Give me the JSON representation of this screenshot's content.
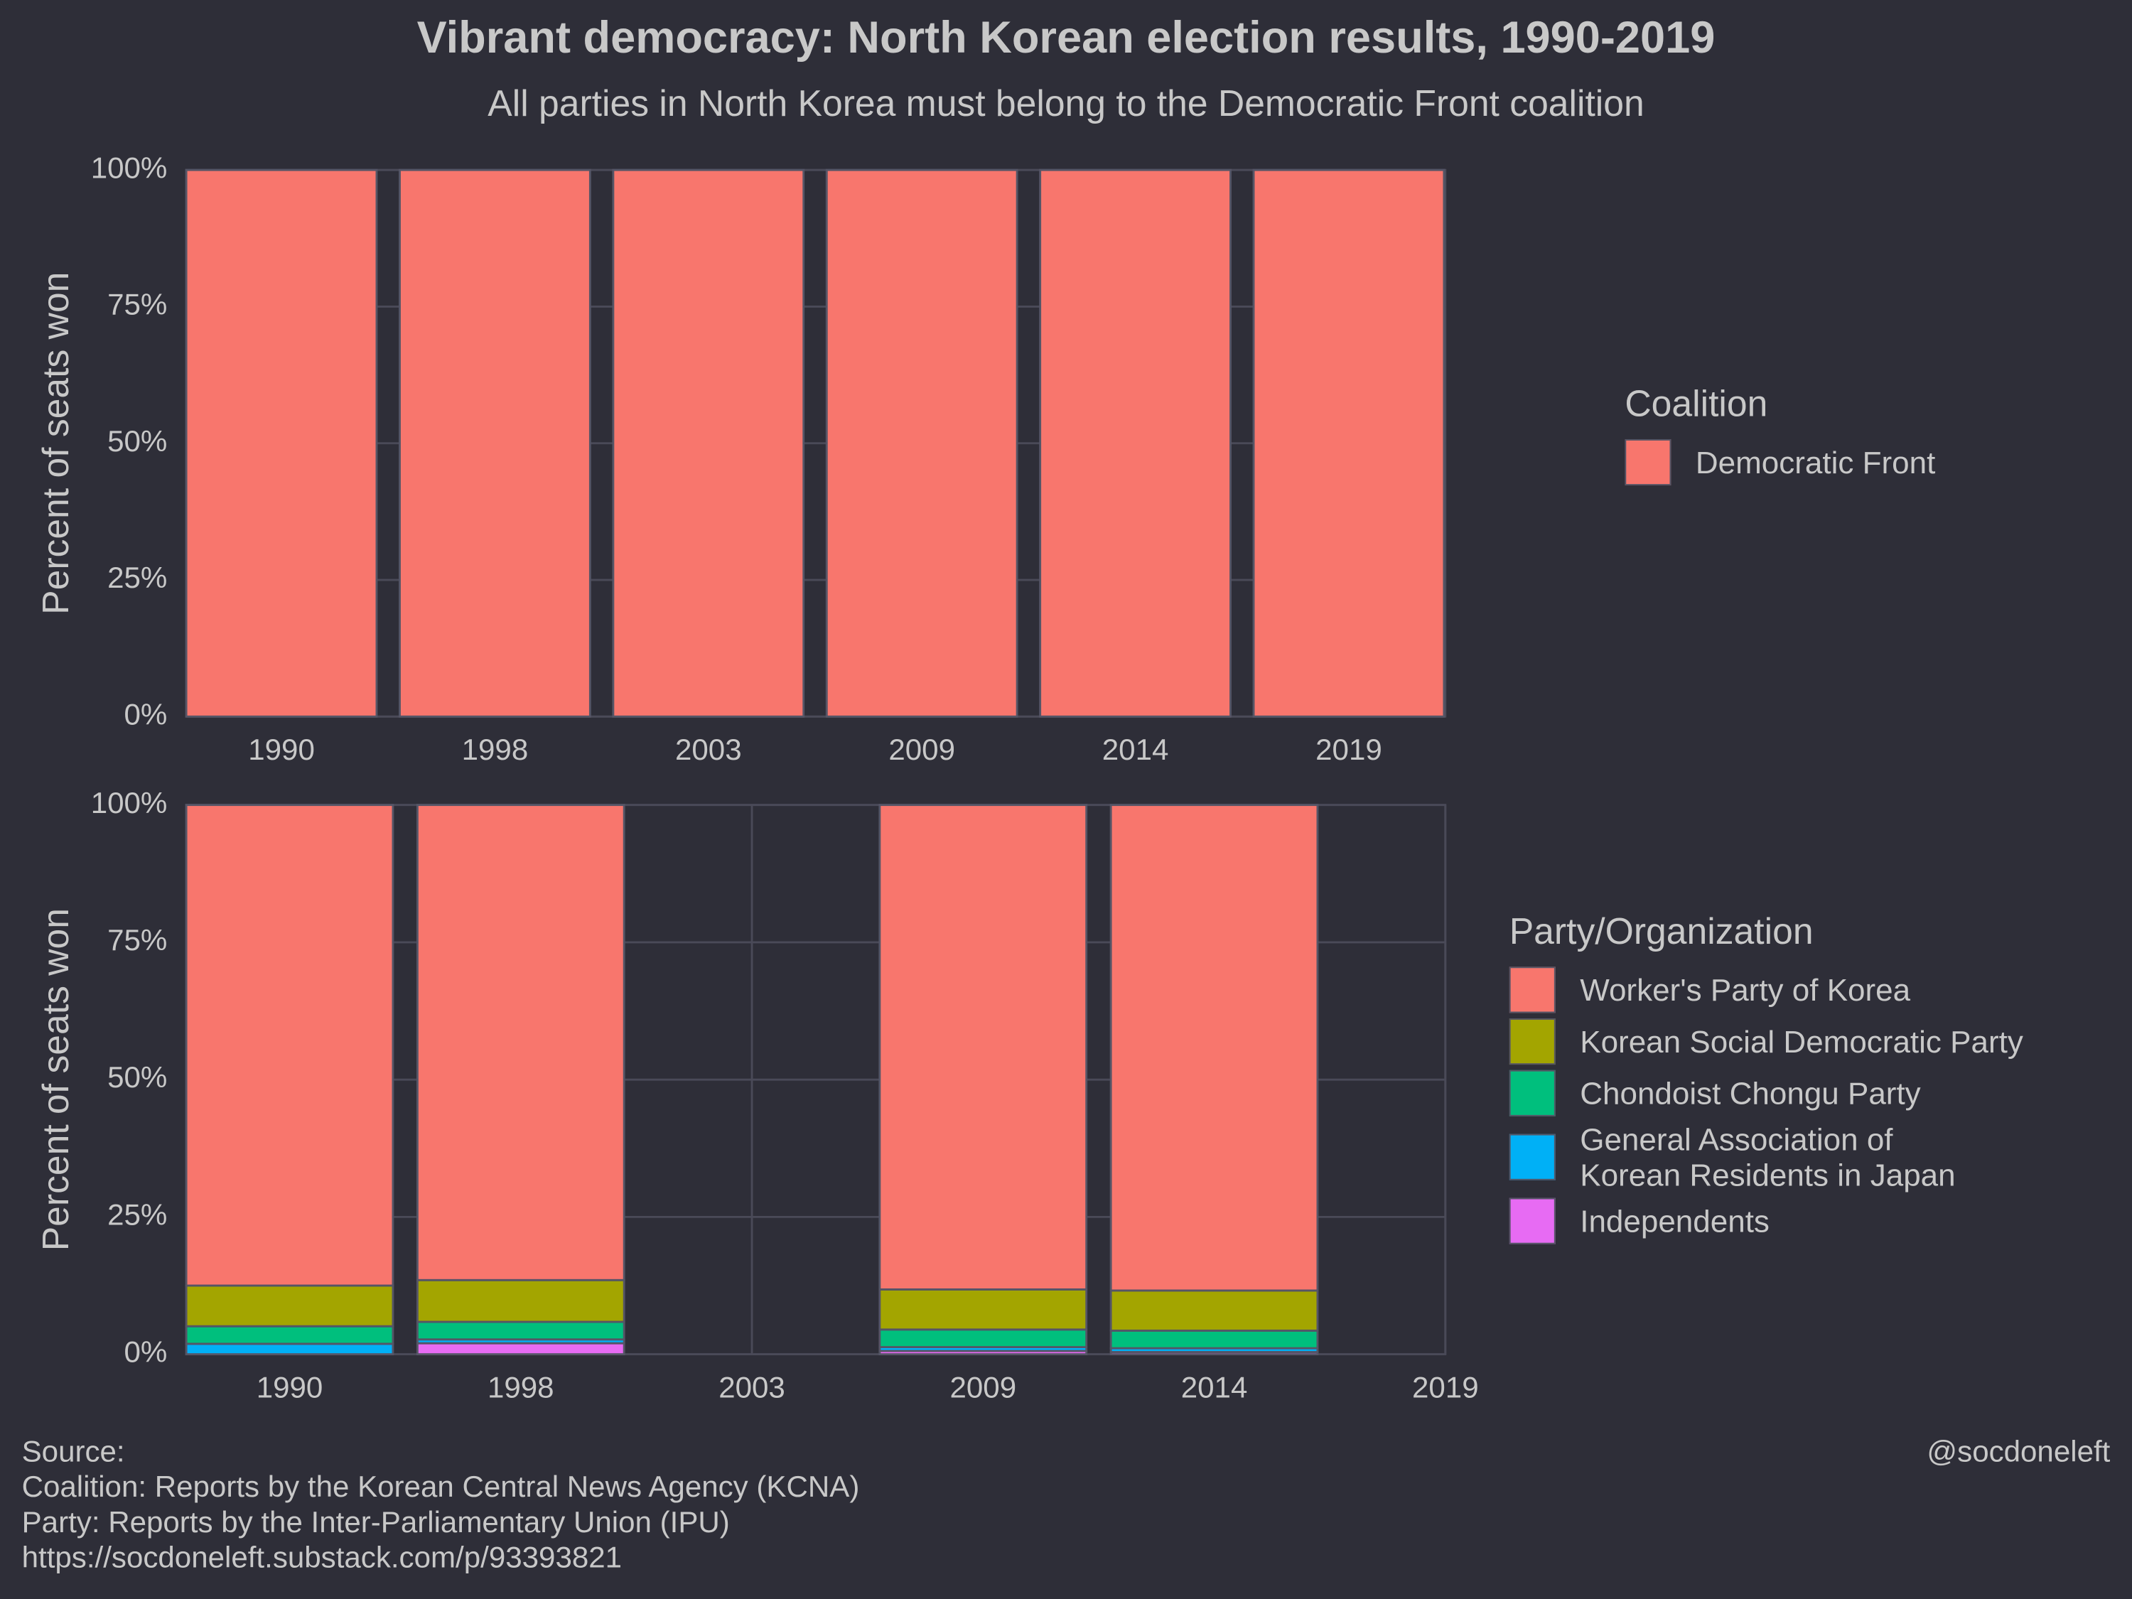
{
  "title": "Vibrant democracy: North Korean election results, 1990-2019",
  "subtitle": "All parties in North Korea must belong to the Democratic Front coalition",
  "caption": [
    "Source:",
    "Coalition: Reports by the Korean Central News Agency (KCNA)",
    "Party: Reports by the Inter-Parliamentary Union (IPU)",
    "https://socdoneleft.substack.com/p/93393821"
  ],
  "credit": "@socdoneleft",
  "chart_data": [
    {
      "type": "stacked_bar",
      "y_label": "Percent of seats won",
      "legend_title": "Coalition",
      "categories": [
        "1990",
        "1998",
        "2003",
        "2009",
        "2014",
        "2019"
      ],
      "series": [
        {
          "name": "Democratic Front",
          "color": "#f8766d",
          "values": [
            100,
            100,
            100,
            100,
            100,
            100
          ]
        }
      ],
      "ylim": [
        0,
        100
      ],
      "yticks": [
        {
          "value": 0,
          "label": "0%"
        },
        {
          "value": 25,
          "label": "25%"
        },
        {
          "value": 50,
          "label": "50%"
        },
        {
          "value": 75,
          "label": "75%"
        },
        {
          "value": 100,
          "label": "100%"
        }
      ],
      "grid": true
    },
    {
      "type": "stacked_bar",
      "y_label": "Percent of seats won",
      "legend_title": "Party/Organization",
      "categories": [
        "1990",
        "1998",
        "2003",
        "2009",
        "2014",
        "2019"
      ],
      "series": [
        {
          "name": "Worker's Party of Korea",
          "color": "#f8766d",
          "values": [
            87.5,
            86.5,
            null,
            88.2,
            88.4,
            null
          ]
        },
        {
          "name": "Korean Social Democratic Party",
          "color": "#a3a500",
          "values": [
            7.4,
            7.6,
            null,
            7.3,
            7.3,
            null
          ]
        },
        {
          "name": "Chondoist Chongu Party",
          "color": "#00bf7d",
          "values": [
            3.2,
            3.2,
            null,
            3.2,
            3.2,
            null
          ]
        },
        {
          "name": "General Association of\nKorean Residents in Japan",
          "color": "#00b0f6",
          "values": [
            1.9,
            0.7,
            null,
            0.7,
            0.7,
            null
          ]
        },
        {
          "name": "Independents",
          "color": "#e76bf3",
          "values": [
            0,
            2.0,
            null,
            0.6,
            0.4,
            null
          ]
        }
      ],
      "ylim": [
        0,
        100
      ],
      "yticks": [
        {
          "value": 0,
          "label": "0%"
        },
        {
          "value": 25,
          "label": "25%"
        },
        {
          "value": 50,
          "label": "50%"
        },
        {
          "value": 75,
          "label": "75%"
        },
        {
          "value": 100,
          "label": "100%"
        }
      ],
      "grid": true
    }
  ]
}
